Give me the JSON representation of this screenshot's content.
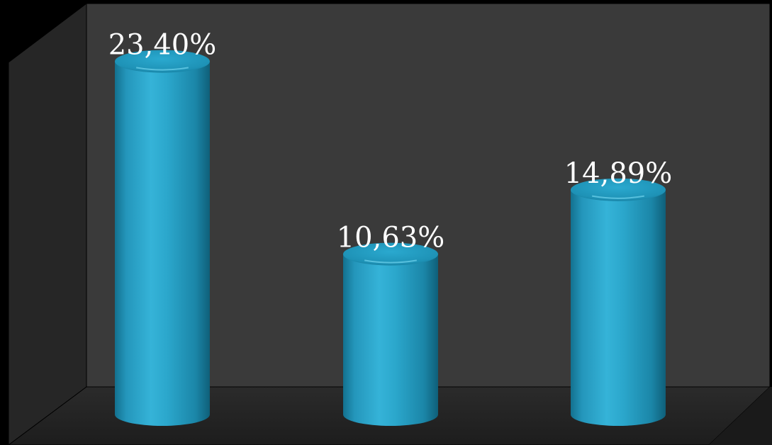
{
  "chart_data": {
    "type": "bar",
    "style": "3d-cylinder",
    "categories": [
      "",
      "",
      ""
    ],
    "values": [
      23.4,
      10.63,
      14.89
    ],
    "data_labels": [
      "23,40%",
      "10,63%",
      "14,89%"
    ],
    "ylim": [
      0,
      25
    ],
    "grid": false,
    "legend": "none",
    "title": "",
    "xlabel": "",
    "ylabel": ""
  },
  "colors": {
    "background": "#000000",
    "back_wall": "#3a3a3a",
    "side_wall": "#262626",
    "floor": "#2e2e2e",
    "bar_main": "#2ba7cc",
    "bar_dark": "#13718f",
    "bar_light": "#5fcbe6",
    "bar_top": "#1f94b8",
    "label": "#ffffff"
  }
}
